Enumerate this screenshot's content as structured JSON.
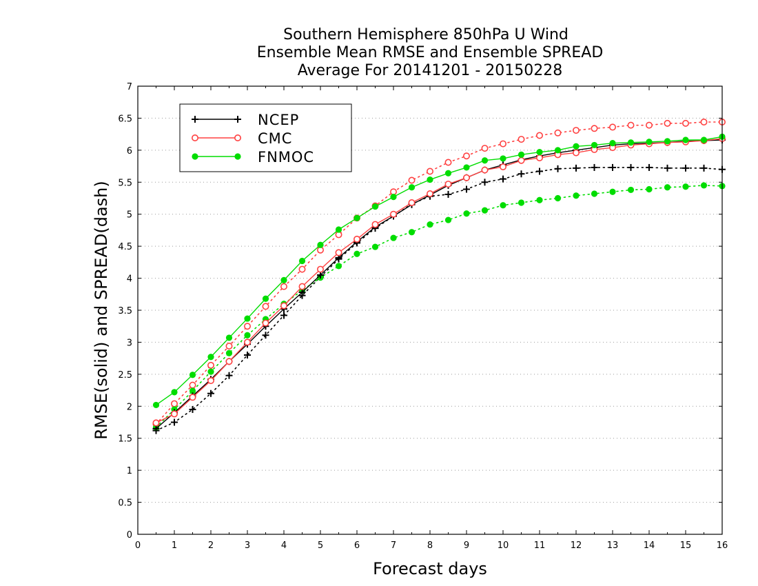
{
  "chart_data": {
    "type": "line",
    "title_lines": [
      "Southern Hemisphere 850hPa U Wind",
      "Ensemble Mean RMSE and Ensemble SPREAD",
      "Average For 20141201 - 20150228"
    ],
    "xlabel": "Forecast days",
    "ylabel": "RMSE(solid) and SPREAD(dash)",
    "xlim": [
      0,
      16
    ],
    "ylim": [
      0,
      7
    ],
    "x_ticks": [
      "0",
      "1",
      "2",
      "3",
      "4",
      "5",
      "6",
      "7",
      "8",
      "9",
      "10",
      "11",
      "12",
      "13",
      "14",
      "15",
      "16"
    ],
    "y_ticks": [
      "0",
      "0.5",
      "1",
      "1.5",
      "2",
      "2.5",
      "3",
      "3.5",
      "4",
      "4.5",
      "5",
      "5.5",
      "6",
      "6.5",
      "7"
    ],
    "grid": "horizontal dotted",
    "legend_position": "top-left",
    "x": [
      0.5,
      1,
      1.5,
      2,
      2.5,
      3,
      3.5,
      4,
      4.5,
      5,
      5.5,
      6,
      6.5,
      7,
      7.5,
      8,
      8.5,
      9,
      9.5,
      10,
      10.5,
      11,
      11.5,
      12,
      12.5,
      13,
      13.5,
      14,
      14.5,
      15,
      15.5,
      16
    ],
    "series": [
      {
        "name": "NCEP",
        "color": "#000000",
        "marker": "plus",
        "rmse": [
          1.65,
          1.9,
          2.16,
          2.42,
          2.7,
          2.97,
          3.25,
          3.52,
          3.78,
          4.05,
          4.32,
          4.57,
          4.8,
          4.97,
          5.15,
          5.3,
          5.45,
          5.57,
          5.69,
          5.77,
          5.85,
          5.91,
          5.96,
          6.0,
          6.04,
          6.08,
          6.1,
          6.11,
          6.12,
          6.14,
          6.15,
          6.16
        ],
        "spread": [
          1.62,
          1.75,
          1.95,
          2.2,
          2.48,
          2.8,
          3.11,
          3.42,
          3.73,
          4.02,
          4.3,
          4.55,
          4.78,
          4.97,
          5.16,
          5.28,
          5.31,
          5.39,
          5.5,
          5.55,
          5.63,
          5.67,
          5.71,
          5.72,
          5.73,
          5.73,
          5.73,
          5.73,
          5.72,
          5.72,
          5.72,
          5.7
        ]
      },
      {
        "name": "CMC",
        "color": "#ff4040",
        "marker": "open-circle",
        "rmse": [
          1.74,
          1.88,
          2.14,
          2.4,
          2.7,
          3.0,
          3.3,
          3.57,
          3.87,
          4.14,
          4.4,
          4.61,
          4.84,
          5.0,
          5.18,
          5.32,
          5.47,
          5.57,
          5.69,
          5.74,
          5.84,
          5.88,
          5.93,
          5.96,
          6.01,
          6.04,
          6.08,
          6.1,
          6.12,
          6.13,
          6.15,
          6.18
        ],
        "spread": [
          1.72,
          2.04,
          2.33,
          2.64,
          2.94,
          3.25,
          3.56,
          3.87,
          4.14,
          4.44,
          4.68,
          4.94,
          5.13,
          5.35,
          5.53,
          5.67,
          5.81,
          5.91,
          6.03,
          6.1,
          6.17,
          6.23,
          6.27,
          6.31,
          6.34,
          6.36,
          6.39,
          6.39,
          6.42,
          6.42,
          6.44,
          6.44
        ]
      },
      {
        "name": "FNMOC",
        "color": "#00dd00",
        "marker": "filled-circle",
        "rmse": [
          2.02,
          2.22,
          2.49,
          2.77,
          3.07,
          3.37,
          3.68,
          3.97,
          4.27,
          4.52,
          4.76,
          4.94,
          5.12,
          5.27,
          5.42,
          5.54,
          5.64,
          5.73,
          5.84,
          5.87,
          5.93,
          5.97,
          6.0,
          6.06,
          6.08,
          6.11,
          6.12,
          6.13,
          6.14,
          6.16,
          6.16,
          6.21
        ],
        "spread": [
          1.67,
          1.95,
          2.24,
          2.54,
          2.83,
          3.11,
          3.36,
          3.6,
          3.81,
          4.01,
          4.19,
          4.38,
          4.49,
          4.63,
          4.72,
          4.84,
          4.91,
          5.01,
          5.06,
          5.14,
          5.18,
          5.22,
          5.25,
          5.29,
          5.32,
          5.35,
          5.38,
          5.39,
          5.42,
          5.43,
          5.45,
          5.44
        ]
      }
    ]
  }
}
